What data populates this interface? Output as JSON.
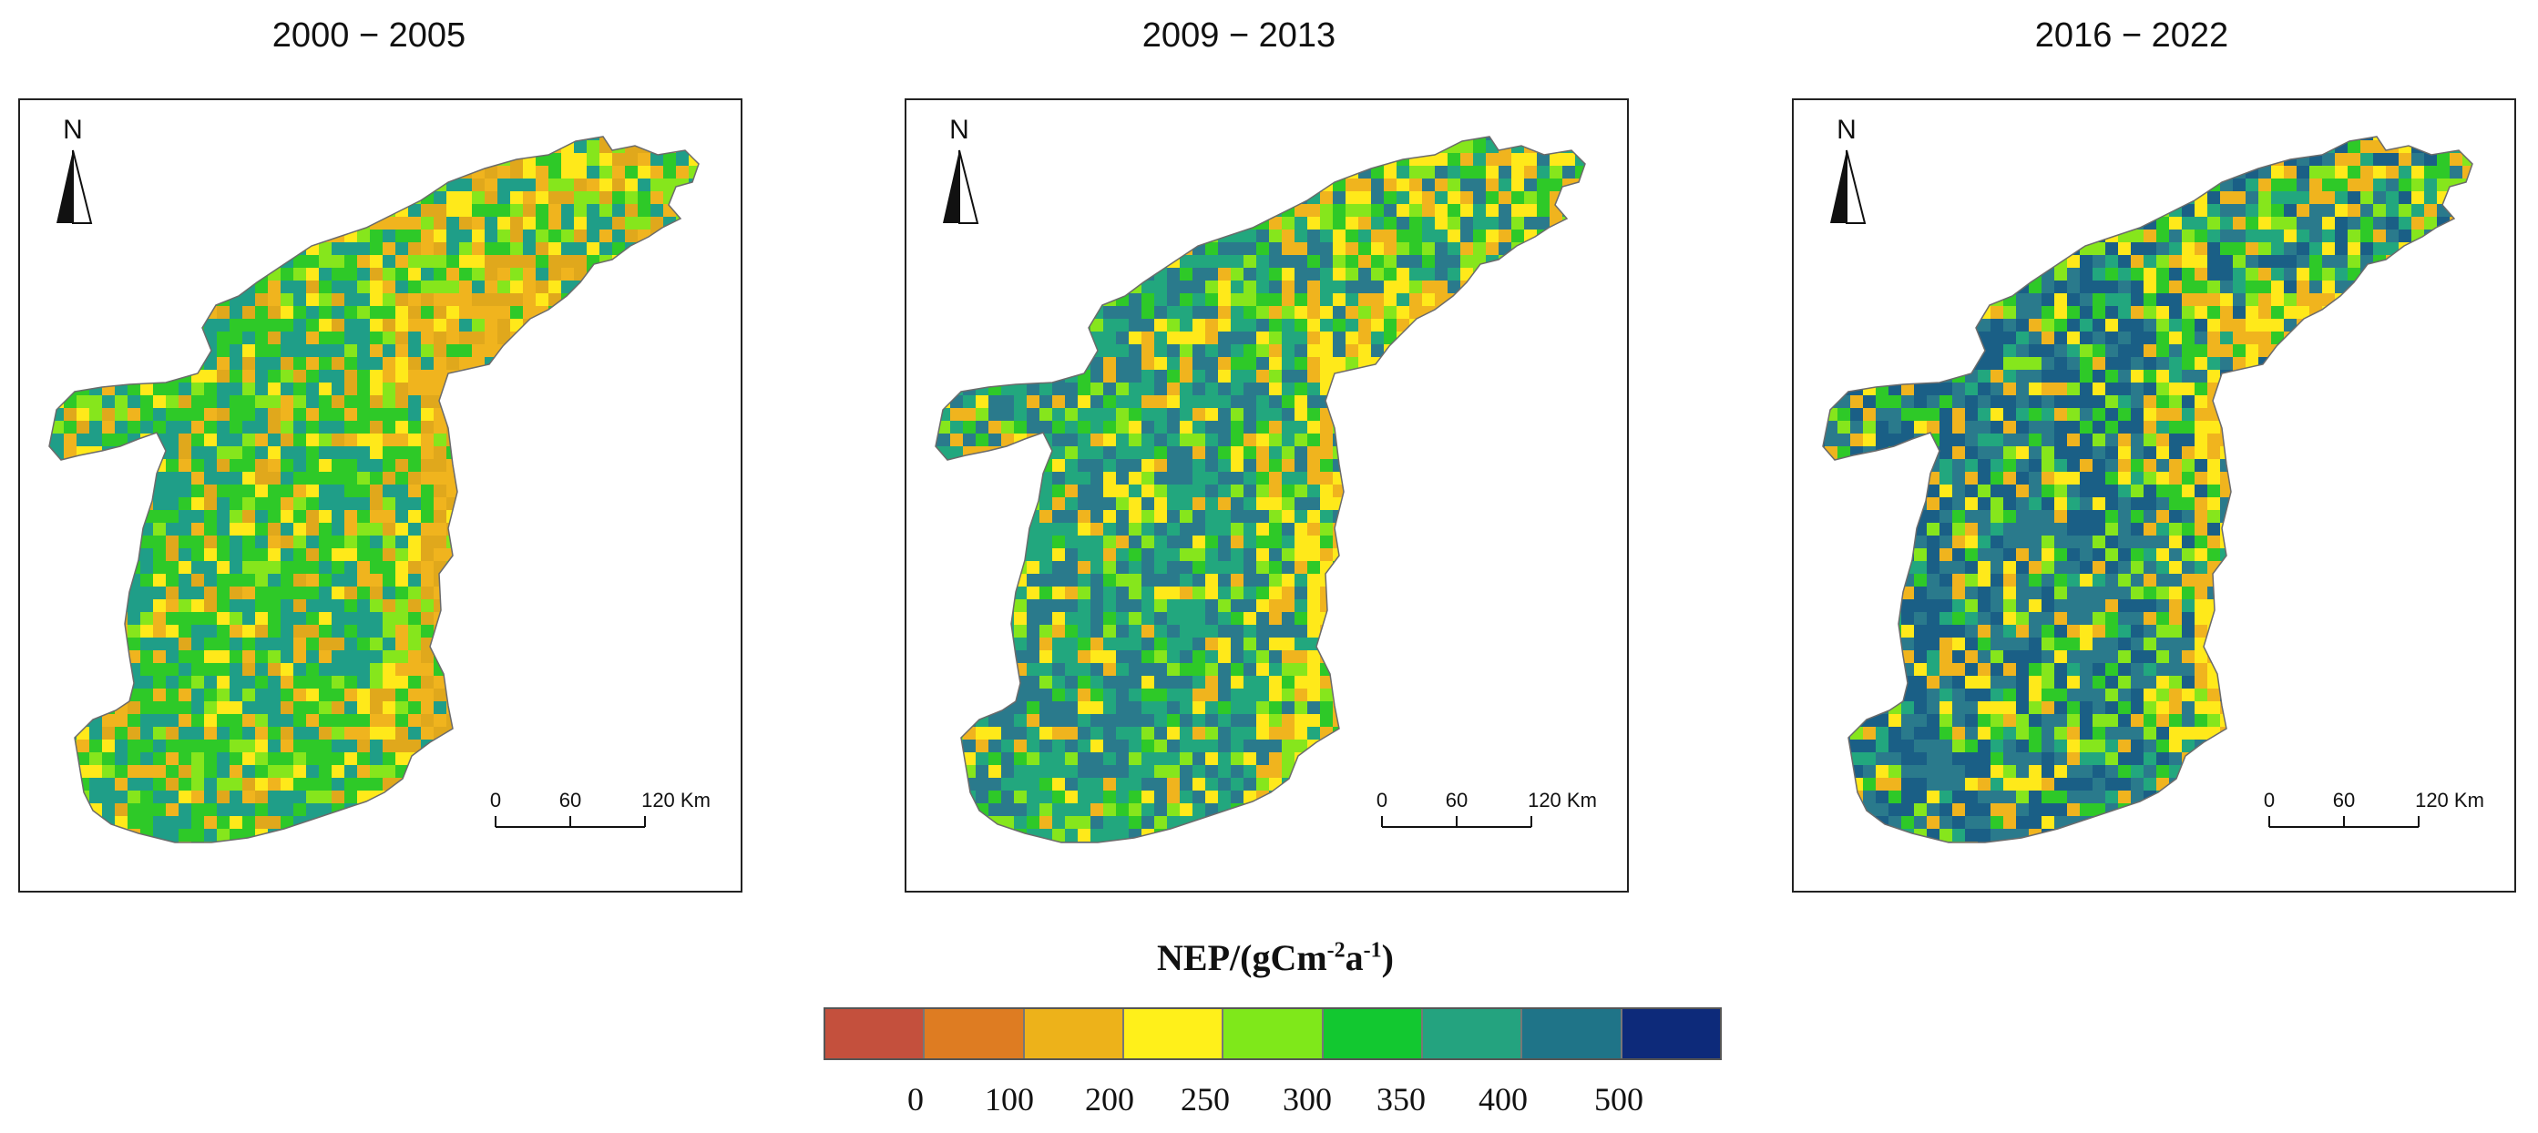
{
  "panels": [
    {
      "title": "2000 − 2005",
      "period": "early",
      "palette": [
        "#e0a81c",
        "#f0b41e",
        "#ffe91a",
        "#86e61c",
        "#2ec928",
        "#1f9e88"
      ]
    },
    {
      "title": "2009 − 2013",
      "period": "mid",
      "palette": [
        "#f0b41e",
        "#ffe91a",
        "#86e61c",
        "#2ec928",
        "#22a77e",
        "#2a7a8c"
      ]
    },
    {
      "title": "2016 − 2022",
      "period": "late",
      "palette": [
        "#f0b41e",
        "#ffe91a",
        "#86e61c",
        "#2ec928",
        "#22a77e",
        "#2a7a8c",
        "#1a5f86"
      ]
    }
  ],
  "map": {
    "north_label": "N",
    "scale_labels": [
      "0",
      "60",
      "120 Km"
    ]
  },
  "legend": {
    "title_main": "NEP/(gCm",
    "title_exp1": "-2",
    "title_mid": "a",
    "title_exp2": "-1",
    "title_end": ")",
    "colors": [
      "#c4503d",
      "#de7c22",
      "#edb21a",
      "#fff01a",
      "#7fe81a",
      "#12c830",
      "#24a37f",
      "#1f7488",
      "#0d2a7a"
    ],
    "ticks": [
      "0",
      "100",
      "200",
      "250",
      "300",
      "350",
      "400",
      "500"
    ]
  }
}
